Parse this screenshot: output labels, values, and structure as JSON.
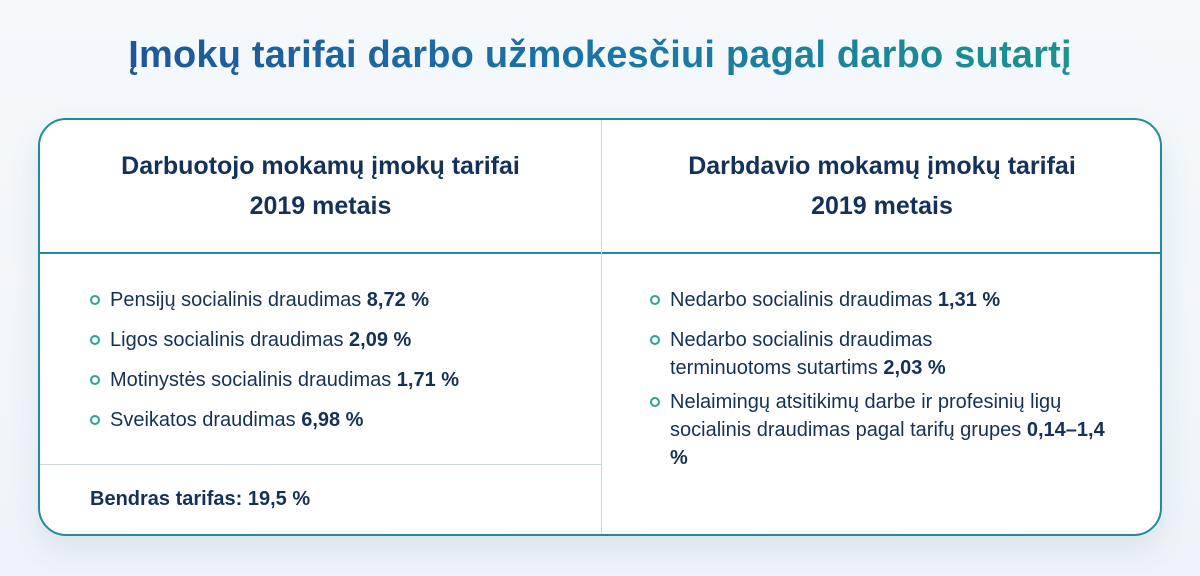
{
  "title": "Įmokų tarifai darbo užmokesčiui pagal darbo sutartį",
  "employee": {
    "heading_line1": "Darbuotojo mokamų įmokų tarifai",
    "heading_line2": "2019 metais",
    "items": [
      {
        "label": "Pensijų socialinis draudimas ",
        "value": "8,72 %"
      },
      {
        "label": "Ligos socialinis draudimas ",
        "value": "2,09 %"
      },
      {
        "label": "Motinystės socialinis draudimas ",
        "value": "1,71 %"
      },
      {
        "label": "Sveikatos draudimas ",
        "value": "6,98 %"
      }
    ],
    "total": "Bendras tarifas: 19,5 %"
  },
  "employer": {
    "heading_line1": "Darbdavio mokamų įmokų tarifai",
    "heading_line2": "2019 metais",
    "items": [
      {
        "label": "Nedarbo socialinis draudimas ",
        "value": "1,31 %"
      },
      {
        "label": "Nedarbo socialinis draudimas terminuotoms sutartims ",
        "value": "2,03 %"
      },
      {
        "label": "Nelaimingų atsitikimų darbe ir profesinių ligų socialinis draudimas pagal tarifų grupes ",
        "value": "0,14–1,4 %"
      }
    ]
  },
  "colors": {
    "title_start": "#1f4f95",
    "title_end": "#1d9a8a",
    "border": "#1f8ba0",
    "bullet": "#2aa48e",
    "text": "#14315a"
  }
}
